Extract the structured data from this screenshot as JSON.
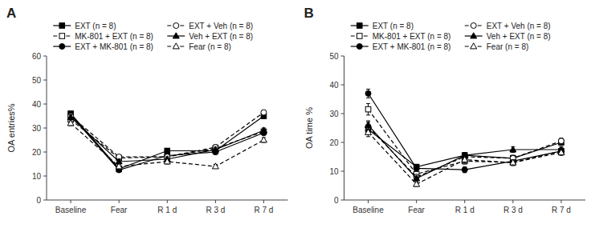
{
  "chart_data": [
    {
      "type": "line",
      "title": "A",
      "y_label": "OA entries%",
      "categories": [
        "Baseline",
        "Fear",
        "R 1 d",
        "R 3 d",
        "R 7 d"
      ],
      "ylim": [
        0,
        60
      ],
      "yticks": [
        0,
        10,
        20,
        30,
        40,
        50,
        60
      ],
      "grid": false,
      "legend": "top",
      "series": [
        {
          "name": "EXT (n = 8)",
          "values": [
            36.0,
            13.0,
            20.5,
            20.5,
            35.0
          ],
          "errors": [
            1.0,
            0.8,
            1.0,
            1.0,
            1.0
          ],
          "marker": "square",
          "color": "#000000",
          "line_style": "solid"
        },
        {
          "name": "MK-801 + EXT (n = 8)",
          "values": [
            33.5,
            17.5,
            18.0,
            21.5,
            28.5
          ],
          "errors": [
            1.2,
            0.8,
            1.0,
            1.0,
            1.0
          ],
          "marker": "square-open",
          "color": "#000000",
          "line_style": "dashed"
        },
        {
          "name": "EXT + MK-801 (n = 8)",
          "values": [
            35.5,
            12.5,
            18.5,
            20.0,
            28.0
          ],
          "errors": [
            1.0,
            0.8,
            1.0,
            1.0,
            1.0
          ],
          "marker": "circle",
          "color": "#000000",
          "line_style": "solid"
        },
        {
          "name": "EXT + Veh (n = 8)",
          "values": [
            35.0,
            18.0,
            18.0,
            22.0,
            36.5
          ],
          "errors": [
            1.0,
            0.8,
            1.0,
            1.0,
            1.0
          ],
          "marker": "circle-open",
          "color": "#000000",
          "line_style": "dashed"
        },
        {
          "name": "Veh + EXT (n = 8)",
          "values": [
            34.5,
            16.0,
            17.0,
            21.0,
            29.0
          ],
          "errors": [
            1.0,
            0.8,
            1.0,
            1.0,
            1.0
          ],
          "marker": "triangle",
          "color": "#000000",
          "line_style": "solid"
        },
        {
          "name": "Fear (n = 8)",
          "values": [
            32.0,
            14.0,
            16.0,
            14.0,
            25.0
          ],
          "errors": [
            1.0,
            0.8,
            1.0,
            0.8,
            1.0
          ],
          "marker": "triangle-open",
          "color": "#000000",
          "line_style": "dashed"
        }
      ]
    },
    {
      "type": "line",
      "title": "B",
      "y_label": "OA time %",
      "categories": [
        "Baseline",
        "Fear",
        "R 1 d",
        "R 3 d",
        "R 7 d"
      ],
      "ylim": [
        0,
        50
      ],
      "yticks": [
        0,
        10,
        20,
        30,
        40,
        50
      ],
      "grid": false,
      "legend": "top",
      "series": [
        {
          "name": "EXT (n = 8)",
          "values": [
            24.5,
            11.5,
            15.5,
            14.5,
            20.0
          ],
          "errors": [
            1.5,
            0.8,
            1.0,
            1.0,
            1.0
          ],
          "marker": "square",
          "color": "#000000",
          "line_style": "solid"
        },
        {
          "name": "MK-801 + EXT (n = 8)",
          "values": [
            31.5,
            9.0,
            13.5,
            13.0,
            17.0
          ],
          "errors": [
            2.0,
            0.8,
            1.0,
            1.0,
            1.0
          ],
          "marker": "square-open",
          "color": "#000000",
          "line_style": "dashed"
        },
        {
          "name": "EXT + MK-801 (n = 8)",
          "values": [
            37.0,
            11.0,
            10.5,
            13.5,
            17.0
          ],
          "errors": [
            1.5,
            0.8,
            1.0,
            1.0,
            1.0
          ],
          "marker": "circle",
          "color": "#000000",
          "line_style": "solid"
        },
        {
          "name": "EXT + Veh (n = 8)",
          "values": [
            25.5,
            8.0,
            15.0,
            14.5,
            20.5
          ],
          "errors": [
            1.5,
            0.8,
            1.0,
            1.0,
            1.0
          ],
          "marker": "circle-open",
          "color": "#000000",
          "line_style": "dashed"
        },
        {
          "name": "Veh + EXT (n = 8)",
          "values": [
            26.0,
            7.5,
            15.5,
            17.5,
            17.5
          ],
          "errors": [
            1.5,
            0.8,
            1.0,
            1.0,
            1.0
          ],
          "marker": "triangle",
          "color": "#000000",
          "line_style": "solid"
        },
        {
          "name": "Fear (n = 8)",
          "values": [
            23.5,
            5.5,
            14.0,
            13.0,
            16.5
          ],
          "errors": [
            1.5,
            0.8,
            1.0,
            1.0,
            1.0
          ],
          "marker": "triangle-open",
          "color": "#000000",
          "line_style": "dashed"
        }
      ]
    }
  ]
}
